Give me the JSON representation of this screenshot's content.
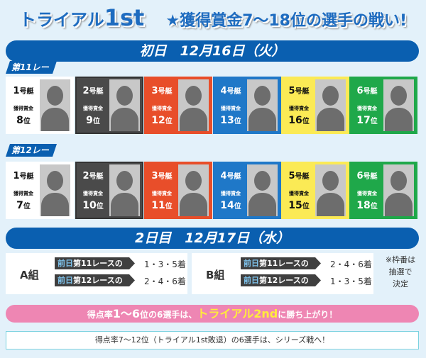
{
  "title": {
    "main": "トライアル",
    "main_big": "1st",
    "subtitle": "★獲得賞金7～18位の選手の戦い!"
  },
  "day1": {
    "banner": "初日　12月16日（火）",
    "races": [
      {
        "label": "第11レース",
        "boats": [
          {
            "boat": "1",
            "suffix": "号艇",
            "prize_label": "獲得賞金",
            "rank": "8",
            "rank_suffix": "位",
            "bg": "#ffffff",
            "fg": "#111111",
            "border": "#ffffff"
          },
          {
            "boat": "2",
            "suffix": "号艇",
            "prize_label": "獲得賞金",
            "rank": "9",
            "rank_suffix": "位",
            "bg": "#4a4a4a",
            "fg": "#ffffff",
            "border": "#333333"
          },
          {
            "boat": "3",
            "suffix": "号艇",
            "prize_label": "獲得賞金",
            "rank": "12",
            "rank_suffix": "位",
            "bg": "#e84e2a",
            "fg": "#ffffff",
            "border": "#e84e2a"
          },
          {
            "boat": "4",
            "suffix": "号艇",
            "prize_label": "獲得賞金",
            "rank": "13",
            "rank_suffix": "位",
            "bg": "#1f78c8",
            "fg": "#ffffff",
            "border": "#1f78c8"
          },
          {
            "boat": "5",
            "suffix": "号艇",
            "prize_label": "獲得賞金",
            "rank": "16",
            "rank_suffix": "位",
            "bg": "#fbea55",
            "fg": "#111111",
            "border": "#fbea55"
          },
          {
            "boat": "6",
            "suffix": "号艇",
            "prize_label": "獲得賞金",
            "rank": "17",
            "rank_suffix": "位",
            "bg": "#1fa84a",
            "fg": "#ffffff",
            "border": "#1fa84a"
          }
        ]
      },
      {
        "label": "第12レース",
        "boats": [
          {
            "boat": "1",
            "suffix": "号艇",
            "prize_label": "獲得賞金",
            "rank": "7",
            "rank_suffix": "位",
            "bg": "#ffffff",
            "fg": "#111111",
            "border": "#ffffff"
          },
          {
            "boat": "2",
            "suffix": "号艇",
            "prize_label": "獲得賞金",
            "rank": "10",
            "rank_suffix": "位",
            "bg": "#4a4a4a",
            "fg": "#ffffff",
            "border": "#333333"
          },
          {
            "boat": "3",
            "suffix": "号艇",
            "prize_label": "獲得賞金",
            "rank": "11",
            "rank_suffix": "位",
            "bg": "#e84e2a",
            "fg": "#ffffff",
            "border": "#e84e2a"
          },
          {
            "boat": "4",
            "suffix": "号艇",
            "prize_label": "獲得賞金",
            "rank": "14",
            "rank_suffix": "位",
            "bg": "#1f78c8",
            "fg": "#ffffff",
            "border": "#1f78c8"
          },
          {
            "boat": "5",
            "suffix": "号艇",
            "prize_label": "獲得賞金",
            "rank": "15",
            "rank_suffix": "位",
            "bg": "#fbea55",
            "fg": "#111111",
            "border": "#fbea55"
          },
          {
            "boat": "6",
            "suffix": "号艇",
            "prize_label": "獲得賞金",
            "rank": "18",
            "rank_suffix": "位",
            "bg": "#1fa84a",
            "fg": "#ffffff",
            "border": "#1fa84a"
          }
        ]
      }
    ]
  },
  "day2": {
    "banner": "2日目　12月17日（水）",
    "groups": [
      {
        "name": "A組",
        "rows": [
          {
            "prefix": "前日",
            "label": "第11レースの",
            "result": "1・3・5着"
          },
          {
            "prefix": "前日",
            "label": "第12レースの",
            "result": "2・4・6着"
          }
        ]
      },
      {
        "name": "B組",
        "rows": [
          {
            "prefix": "前日",
            "label": "第11レースの",
            "result": "2・4・6着"
          },
          {
            "prefix": "前日",
            "label": "第12レースの",
            "result": "1・3・5着"
          }
        ]
      }
    ],
    "note": [
      "※枠番は",
      "抽選で",
      "決定"
    ]
  },
  "advance": {
    "pre": "得点率",
    "big": "1～6",
    "mid": "位の6選手は、",
    "highlight": "トライアル2nd",
    "post": "に勝ち上がり！"
  },
  "eliminated": "得点率7～12位（トライアル1st敗退）の6選手は、シリーズ戦へ！"
}
